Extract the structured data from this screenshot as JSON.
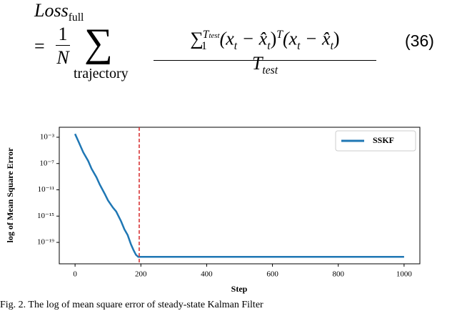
{
  "equation": {
    "lhs": "Loss",
    "lhs_sub": "full",
    "equals": "=",
    "one": "1",
    "n": "N",
    "sum": "∑",
    "sum_sub": "trajectory",
    "numerator": [
      "∑",
      "1",
      "T",
      "test",
      "(x",
      "t",
      " − x̂",
      "t",
      ")",
      "T",
      "(x",
      "t",
      " − x̂",
      "t",
      ")"
    ],
    "denominator": [
      "T",
      "test"
    ],
    "number": "(36)"
  },
  "chart_data": {
    "type": "line",
    "x_label": "Step",
    "y_label": "log of Mean Square Error",
    "log_y": true,
    "legend": "upper right",
    "series": [
      {
        "name": "SSKF",
        "color": "#1f77b4",
        "x": [
          0,
          10,
          25,
          40,
          50,
          65,
          75,
          90,
          100,
          115,
          125,
          140,
          150,
          160,
          170,
          178,
          185,
          192,
          200,
          300,
          400,
          500,
          600,
          700,
          800,
          900,
          1000
        ],
        "values": [
          0.0032,
          0.00025,
          5e-06,
          2.5e-07,
          1.6e-08,
          8e-10,
          6.3e-11,
          2.5e-12,
          2.5e-13,
          2e-14,
          5e-15,
          1.6e-16,
          1e-17,
          1.3e-18,
          5e-20,
          6.3e-21,
          1.3e-21,
          6.3e-22,
          6.3e-22,
          6.3e-22,
          6.3e-22,
          6.3e-22,
          6.3e-22,
          6.3e-22,
          6.3e-22,
          6.3e-22,
          6.3e-22
        ]
      }
    ],
    "vline": {
      "x": 195,
      "color": "#d62728"
    },
    "xlim": [
      -48,
      1048
    ],
    "xticks": [
      0,
      200,
      400,
      600,
      800,
      1000
    ],
    "ylim": [
      5.5e-23,
      0.033
    ],
    "yticks": [
      {
        "value": 1e-19,
        "label": "10⁻¹⁹"
      },
      {
        "value": 1e-15,
        "label": "10⁻¹⁵"
      },
      {
        "value": 1e-11,
        "label": "10⁻¹¹"
      },
      {
        "value": 1e-07,
        "label": "10⁻⁷"
      },
      {
        "value": 0.001,
        "label": "10⁻³"
      }
    ]
  },
  "caption": "Fig. 2.   The log of mean square error of steady-state Kalman Filter"
}
